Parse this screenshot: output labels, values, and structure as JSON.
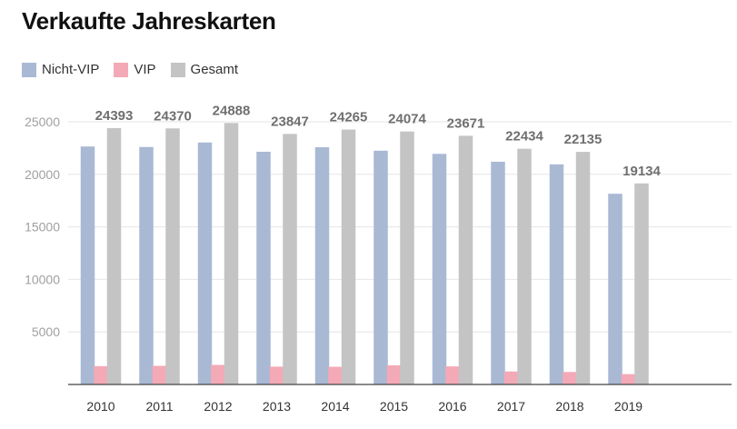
{
  "chart_data": {
    "type": "bar",
    "title": "Verkaufte Jahreskarten",
    "categories": [
      "2010",
      "2011",
      "2012",
      "2013",
      "2014",
      "2015",
      "2016",
      "2017",
      "2018",
      "2019"
    ],
    "series": [
      {
        "name": "Nicht-VIP",
        "color": "#a9b9d4",
        "values": [
          22650,
          22600,
          23030,
          22150,
          22580,
          22250,
          21950,
          21200,
          20950,
          18150
        ]
      },
      {
        "name": "VIP",
        "color": "#f4a9b6",
        "values": [
          1743,
          1770,
          1858,
          1697,
          1685,
          1824,
          1721,
          1234,
          1185,
          984
        ]
      },
      {
        "name": "Gesamt",
        "color": "#c4c4c4",
        "values": [
          24393,
          24370,
          24888,
          23847,
          24265,
          24074,
          23671,
          22434,
          22135,
          19134
        ]
      }
    ],
    "data_labels_series": "Gesamt",
    "ylim": [
      0,
      25000
    ],
    "yticks": [
      5000,
      10000,
      15000,
      20000,
      25000
    ],
    "xlabel": "",
    "ylabel": "",
    "grid": true,
    "legend_position": "top-left"
  }
}
